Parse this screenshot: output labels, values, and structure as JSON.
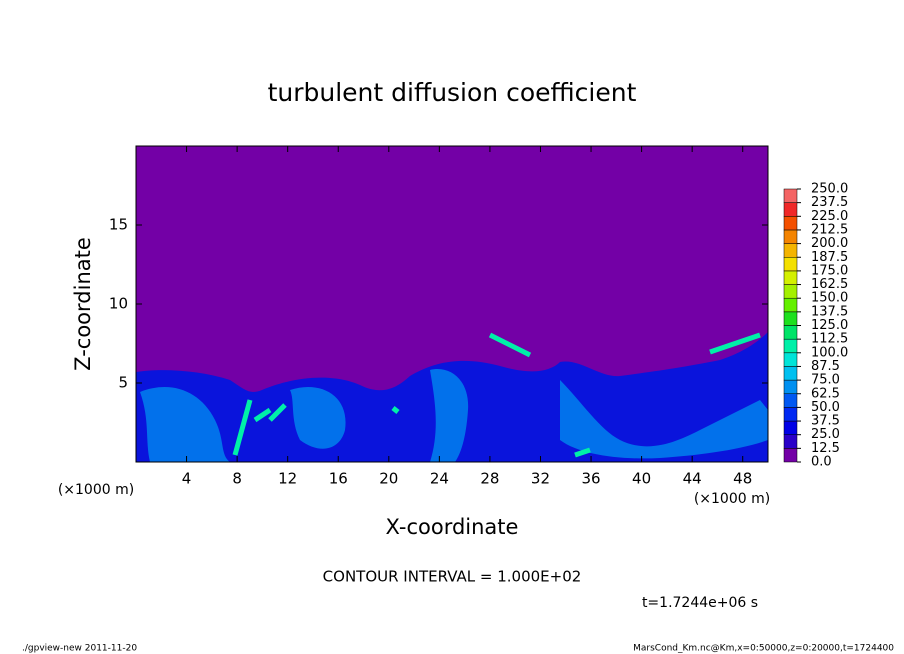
{
  "chart_data": {
    "type": "heatmap",
    "title": "turbulent diffusion coefficient",
    "x_label": "X-coordinate",
    "y_label": "Z-coordinate",
    "x_unit": "(×1000 m)",
    "x_unit_right": "(×1000 m)",
    "xlim": [
      0,
      50
    ],
    "xticks": [
      4,
      8,
      12,
      16,
      20,
      24,
      28,
      32,
      36,
      40,
      44,
      48
    ],
    "ylim": [
      0,
      20
    ],
    "yticks": [
      5,
      10,
      15
    ],
    "colorbar": {
      "levels": [
        {
          "value": 0,
          "label": "0.0"
        },
        12.5,
        {
          "value": 25,
          "label": "25.0"
        },
        37.5,
        {
          "value": 50,
          "label": "50.0"
        },
        62.5,
        {
          "value": 75,
          "label": "75.0"
        },
        87.5,
        {
          "value": 100,
          "label": "100.0"
        },
        112.5,
        {
          "value": 125,
          "label": "125.0"
        },
        137.5,
        {
          "value": 150,
          "label": "150.0"
        },
        162.5,
        {
          "value": 175,
          "label": "175.0"
        },
        187.5,
        {
          "value": 200,
          "label": "200.0"
        },
        212.5,
        {
          "value": 225,
          "label": "225.0"
        },
        237.5,
        {
          "value": 250,
          "label": "250.0"
        }
      ],
      "colors": [
        "#7300a6",
        "#2a00c8",
        "#0000e6",
        "#0028f2",
        "#0058f2",
        "#0090f0",
        "#00c0f0",
        "#00e4d8",
        "#00f0a8",
        "#00e468",
        "#1ee01e",
        "#64f000",
        "#a4f000",
        "#d4f000",
        "#f4e000",
        "#f4b400",
        "#f48400",
        "#f45000",
        "#f02828",
        "#f46464"
      ]
    },
    "contour_interval": "CONTOUR INTERVAL = 1.000E+02",
    "time_label": "t=1.7244e+06 s",
    "footer_left": "./gpview-new  2011-11-20",
    "footer_right": "MarsCond_Km.nc@Km,x=0:50000,z=0:20000,t=1724400"
  }
}
